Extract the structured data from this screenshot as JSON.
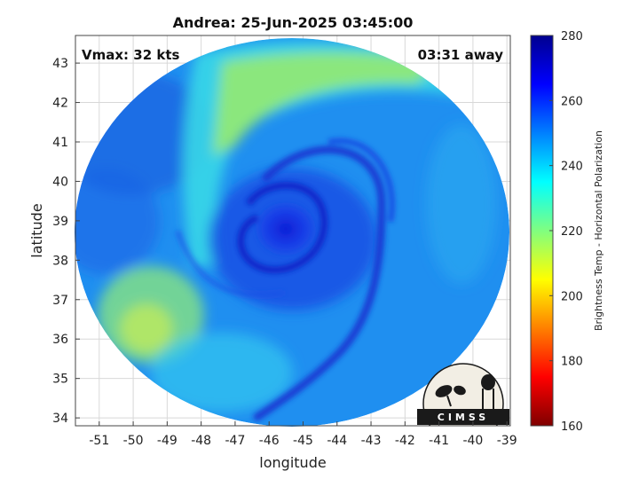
{
  "title": "Andrea: 25-Jun-2025 03:45:00",
  "vmax_label": "Vmax: 32 kts",
  "time_away_label": "03:31 away",
  "xlabel": "longitude",
  "ylabel": "latitude",
  "colorbar_label": "Brightness Temp - Horizontal Polarization",
  "logo_text": "CIMSS",
  "colors": {
    "colormap": [
      "#7f0000",
      "#ff0000",
      "#ff8000",
      "#ffff00",
      "#80ff80",
      "#00ffff",
      "#0080ff",
      "#0000ff",
      "#00008f"
    ],
    "grid": "#d8d8d8",
    "frame": "#444444"
  },
  "chart_data": {
    "type": "heatmap",
    "xlim": [
      -51.7,
      -38.9
    ],
    "ylim": [
      33.8,
      43.7
    ],
    "x_ticks": [
      -51,
      -50,
      -49,
      -48,
      -47,
      -46,
      -45,
      -44,
      -43,
      -42,
      -41,
      -40,
      -39
    ],
    "y_ticks": [
      34,
      35,
      36,
      37,
      38,
      39,
      40,
      41,
      42,
      43
    ],
    "colorbar_range": [
      160,
      280
    ],
    "colorbar_ticks": [
      160,
      180,
      200,
      220,
      240,
      260,
      280
    ],
    "grid": true,
    "storm_center": {
      "lon": -45.5,
      "lat": 38.9
    }
  }
}
